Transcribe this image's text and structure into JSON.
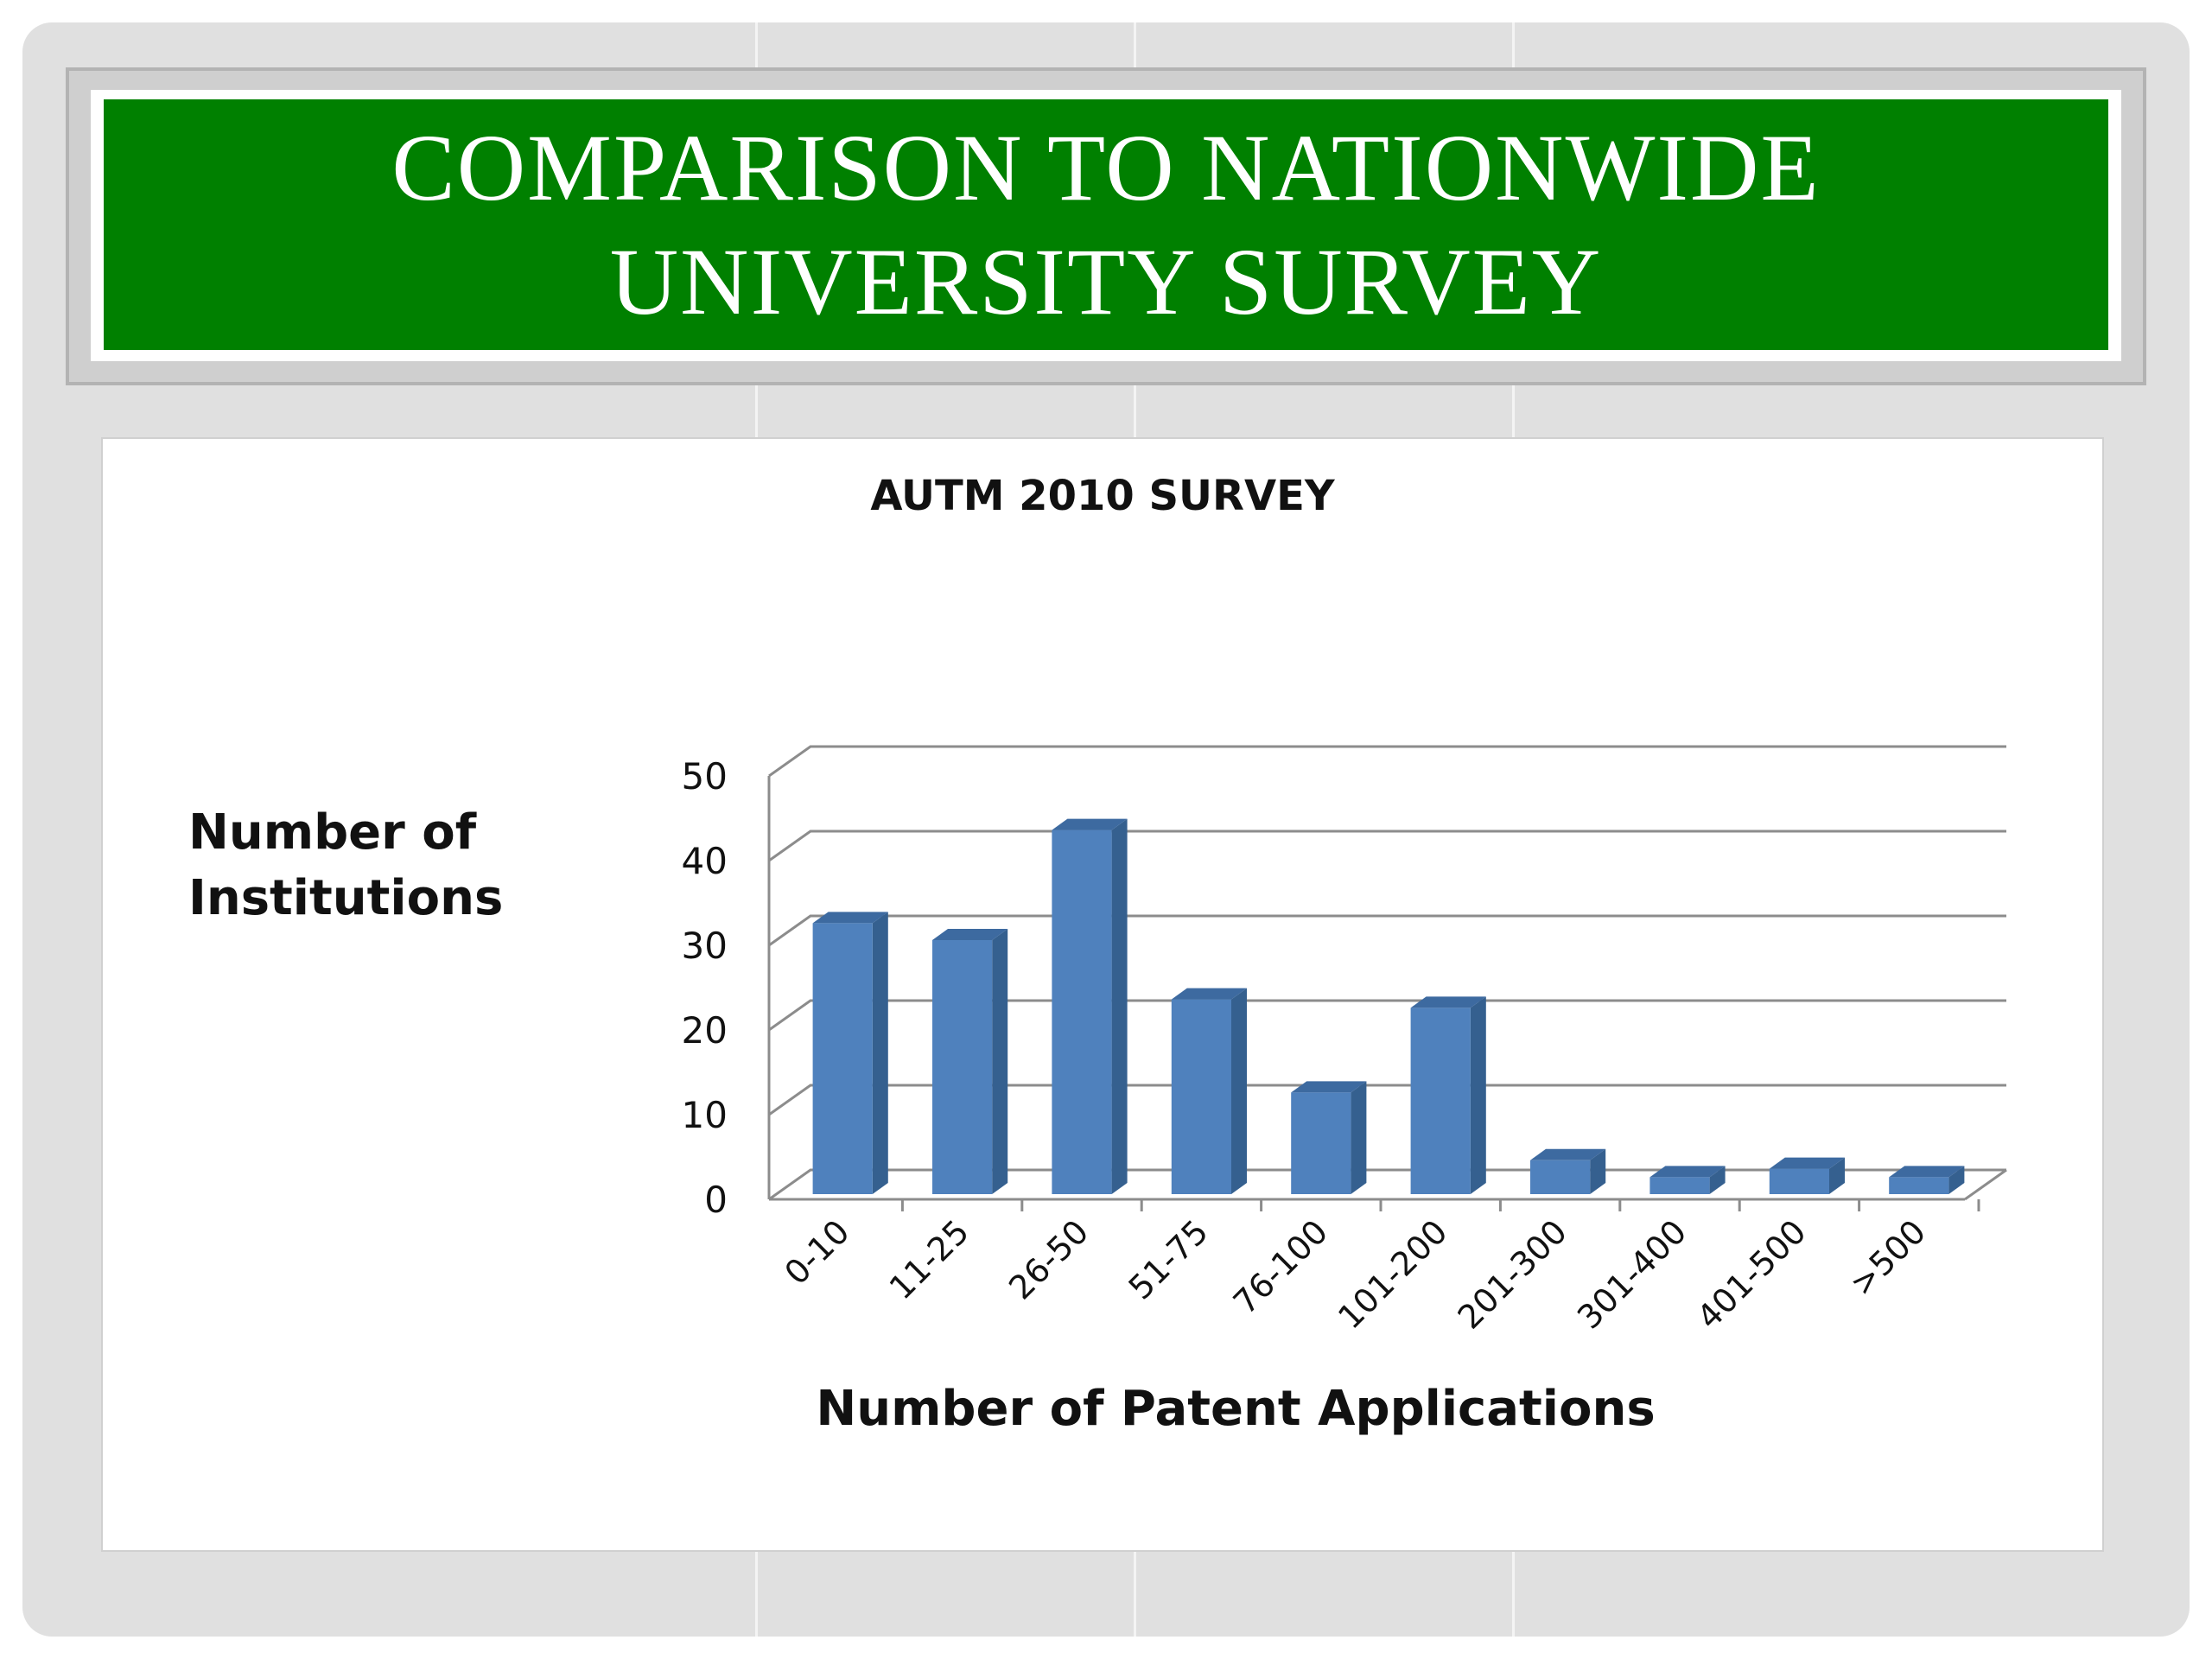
{
  "slide": {
    "title": "COMPARISON TO NATIONWIDE\nUNIVERSITY SURVEY"
  },
  "chart_data": {
    "type": "bar",
    "title": "AUTM 2010 SURVEY",
    "xlabel": "Number of Patent Applications",
    "ylabel": "Number of Institutions",
    "categories": [
      "0-10",
      "11-25",
      "26-50",
      "51-75",
      "76-100",
      "101-200",
      "201-300",
      "301-400",
      "401-500",
      ">500"
    ],
    "values": [
      32,
      30,
      43,
      23,
      12,
      22,
      4,
      2,
      3,
      2
    ],
    "ylim": [
      0,
      50
    ],
    "yticks": [
      "0",
      "10",
      "20",
      "30",
      "40",
      "50"
    ],
    "grid": true,
    "style": "3d-column",
    "colors": {
      "bar_front": "#4f81bd",
      "bar_side": "#35608f",
      "bar_top": "#3d6aa0",
      "grid": "#8c8c8c"
    }
  }
}
